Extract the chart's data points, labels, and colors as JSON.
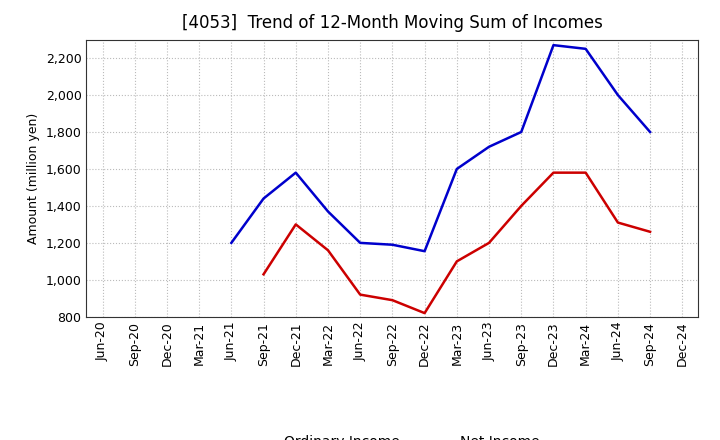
{
  "title": "[4053]  Trend of 12-Month Moving Sum of Incomes",
  "ylabel": "Amount (million yen)",
  "x_labels": [
    "Jun-20",
    "Sep-20",
    "Dec-20",
    "Mar-21",
    "Jun-21",
    "Sep-21",
    "Dec-21",
    "Mar-22",
    "Jun-22",
    "Sep-22",
    "Dec-22",
    "Mar-23",
    "Jun-23",
    "Sep-23",
    "Dec-23",
    "Mar-24",
    "Jun-24",
    "Sep-24",
    "Dec-24"
  ],
  "ordinary_income": [
    null,
    null,
    null,
    null,
    1200,
    1440,
    1580,
    1370,
    1200,
    1190,
    1155,
    1600,
    1720,
    1800,
    2270,
    2250,
    2000,
    1800,
    null
  ],
  "net_income": [
    null,
    null,
    null,
    null,
    null,
    1030,
    1300,
    1160,
    920,
    890,
    820,
    1100,
    1200,
    1400,
    1580,
    1580,
    1310,
    1260,
    null
  ],
  "ordinary_color": "#0000cc",
  "net_color": "#cc0000",
  "ylim": [
    800,
    2300
  ],
  "yticks": [
    800,
    1000,
    1200,
    1400,
    1600,
    1800,
    2000,
    2200
  ],
  "grid_color": "#bbbbbb",
  "background_color": "#ffffff",
  "title_fontsize": 12,
  "axis_fontsize": 9,
  "legend_fontsize": 10,
  "line_width": 1.8
}
